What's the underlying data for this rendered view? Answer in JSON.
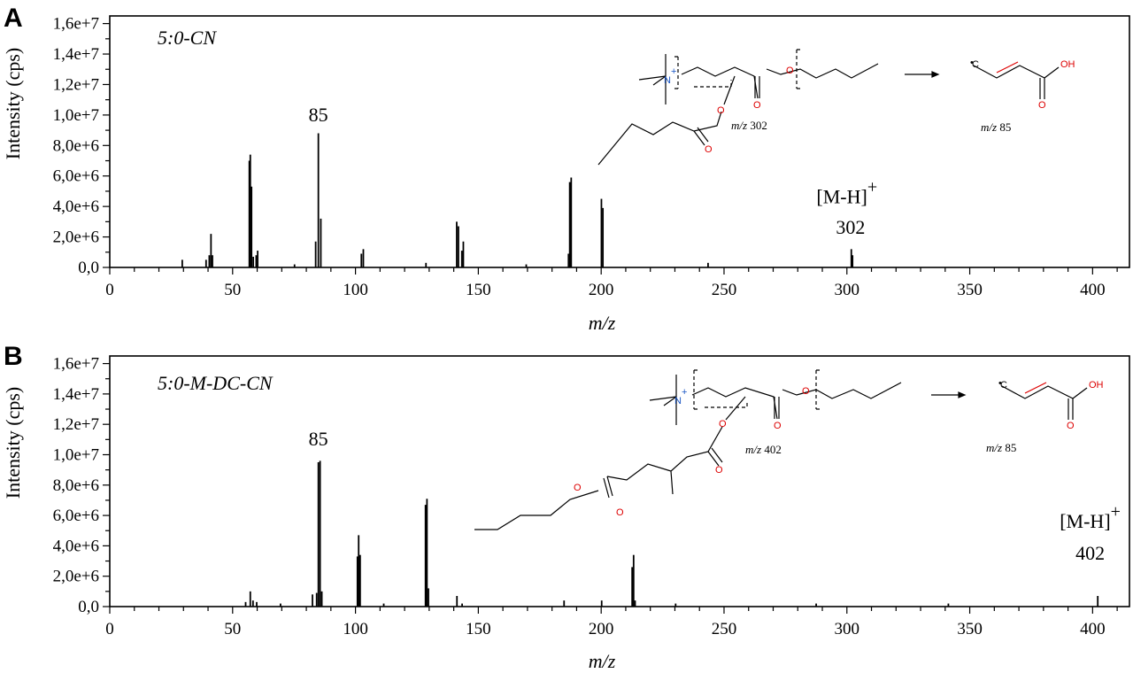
{
  "chart_data": [
    {
      "type": "bar",
      "panel_label": "A",
      "title": "5:0-CN",
      "xlabel": "m/z",
      "ylabel": "Intensity (cps)",
      "xlim": [
        0,
        415
      ],
      "ylim": [
        0,
        16500000
      ],
      "xticks": [
        "0",
        "50",
        "100",
        "150",
        "200",
        "250",
        "300",
        "350",
        "400"
      ],
      "yticks": [
        "0,0",
        "2,0e+6",
        "4,0e+6",
        "6,0e+6",
        "8,0e+6",
        "1,0e+7",
        "1,2e+7",
        "1,4e+7",
        "1,6e+7"
      ],
      "grid": false,
      "peaks": [
        {
          "x": 29.5,
          "y": 500000
        },
        {
          "x": 39.2,
          "y": 500000
        },
        {
          "x": 40.5,
          "y": 800000
        },
        {
          "x": 41.2,
          "y": 2200000
        },
        {
          "x": 41.8,
          "y": 800000
        },
        {
          "x": 56.8,
          "y": 7000000
        },
        {
          "x": 57.2,
          "y": 7400000
        },
        {
          "x": 57.7,
          "y": 5300000
        },
        {
          "x": 58.4,
          "y": 700000
        },
        {
          "x": 59.6,
          "y": 800000
        },
        {
          "x": 60.2,
          "y": 1100000
        },
        {
          "x": 75.2,
          "y": 200000
        },
        {
          "x": 83.8,
          "y": 1700000
        },
        {
          "x": 84.9,
          "y": 8800000
        },
        {
          "x": 85.9,
          "y": 3200000
        },
        {
          "x": 102.4,
          "y": 900000
        },
        {
          "x": 103.2,
          "y": 1200000
        },
        {
          "x": 128.7,
          "y": 300000
        },
        {
          "x": 141.2,
          "y": 3000000
        },
        {
          "x": 141.9,
          "y": 2700000
        },
        {
          "x": 143.3,
          "y": 1100000
        },
        {
          "x": 143.9,
          "y": 1700000
        },
        {
          "x": 169.5,
          "y": 200000
        },
        {
          "x": 186.7,
          "y": 900000
        },
        {
          "x": 187.2,
          "y": 5600000
        },
        {
          "x": 187.8,
          "y": 5900000
        },
        {
          "x": 200.1,
          "y": 4500000
        },
        {
          "x": 200.7,
          "y": 3900000
        },
        {
          "x": 243.5,
          "y": 300000
        },
        {
          "x": 301.8,
          "y": 1200000
        },
        {
          "x": 302.3,
          "y": 800000
        }
      ],
      "annotations": [
        {
          "text": "85",
          "x": 84.9,
          "y": 9600000
        },
        {
          "text": "[M-H]",
          "sup": "+",
          "x": 300,
          "y": 4200000
        },
        {
          "text": "302",
          "x": 301.5,
          "y": 2200000
        }
      ],
      "structure": {
        "n": "N",
        "plus": "+",
        "o": "O",
        "oh": "OH",
        "c": "C",
        "dot": "•",
        "mz_label": "m/z",
        "mz_parent": "302",
        "mz_fragment": "85"
      }
    },
    {
      "type": "bar",
      "panel_label": "B",
      "title": "5:0-M-DC-CN",
      "xlabel": "m/z",
      "ylabel": "Intensity (cps)",
      "xlim": [
        0,
        415
      ],
      "ylim": [
        0,
        16500000
      ],
      "xticks": [
        "0",
        "50",
        "100",
        "150",
        "200",
        "250",
        "300",
        "350",
        "400"
      ],
      "yticks": [
        "0,0",
        "2,0e+6",
        "4,0e+6",
        "6,0e+6",
        "8,0e+6",
        "1,0e+7",
        "1,2e+7",
        "1,4e+7",
        "1,6e+7"
      ],
      "grid": false,
      "peaks": [
        {
          "x": 55.3,
          "y": 300000
        },
        {
          "x": 57.2,
          "y": 1000000
        },
        {
          "x": 58.3,
          "y": 400000
        },
        {
          "x": 59.8,
          "y": 300000
        },
        {
          "x": 69.5,
          "y": 200000
        },
        {
          "x": 82.5,
          "y": 800000
        },
        {
          "x": 84.2,
          "y": 900000
        },
        {
          "x": 84.9,
          "y": 9500000
        },
        {
          "x": 85.6,
          "y": 9600000
        },
        {
          "x": 86.3,
          "y": 1000000
        },
        {
          "x": 100.8,
          "y": 3300000
        },
        {
          "x": 101.3,
          "y": 4700000
        },
        {
          "x": 101.9,
          "y": 3400000
        },
        {
          "x": 111.5,
          "y": 200000
        },
        {
          "x": 128.5,
          "y": 6700000
        },
        {
          "x": 129.1,
          "y": 7100000
        },
        {
          "x": 129.7,
          "y": 1200000
        },
        {
          "x": 141.3,
          "y": 700000
        },
        {
          "x": 143.4,
          "y": 200000
        },
        {
          "x": 184.9,
          "y": 400000
        },
        {
          "x": 200.2,
          "y": 400000
        },
        {
          "x": 212.6,
          "y": 2600000
        },
        {
          "x": 213.2,
          "y": 3400000
        },
        {
          "x": 213.8,
          "y": 400000
        },
        {
          "x": 230.3,
          "y": 200000
        },
        {
          "x": 287.5,
          "y": 200000
        },
        {
          "x": 341.3,
          "y": 200000
        },
        {
          "x": 402.1,
          "y": 700000
        }
      ],
      "annotations": [
        {
          "text": "85",
          "x": 84.9,
          "y": 10600000
        },
        {
          "text": "[M-H]",
          "sup": "+",
          "x": 399,
          "y": 5200000
        },
        {
          "text": "402",
          "x": 399,
          "y": 3100000
        }
      ],
      "structure": {
        "n": "N",
        "plus": "+",
        "o": "O",
        "oh": "OH",
        "c": "C",
        "dot": "•",
        "mz_label": "m/z",
        "mz_parent": "402",
        "mz_fragment": "85"
      }
    }
  ]
}
